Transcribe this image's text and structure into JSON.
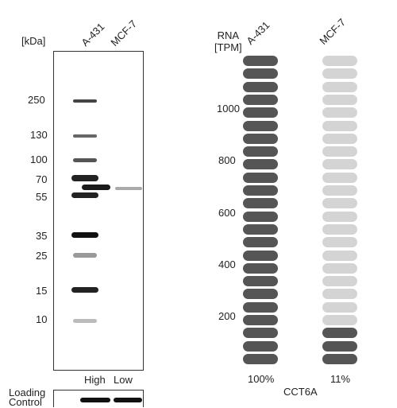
{
  "western_blot": {
    "unit_label": "[kDa]",
    "lanes": [
      {
        "name": "A-431",
        "level": "High",
        "band_intensity": 1.0
      },
      {
        "name": "MCF-7",
        "level": "Low",
        "band_intensity": 0.35
      }
    ],
    "markers": [
      "250",
      "130",
      "100",
      "70",
      "55",
      "35",
      "25",
      "15",
      "10"
    ],
    "loading_control_label_line1": "Loading",
    "loading_control_label_line2": "Control",
    "colors": {
      "band": "#1a1a1a",
      "marker": "#2a2a2a"
    }
  },
  "rna": {
    "header_line1": "RNA",
    "header_line2": "[TPM]",
    "cell_lines": [
      {
        "name": "A-431",
        "percent_label": "100%",
        "filled_fraction": 1.0
      },
      {
        "name": "MCF-7",
        "percent_label": "11%",
        "filled_fraction": 0.11
      }
    ],
    "axis_ticks": [
      "1000",
      "800",
      "600",
      "400",
      "200"
    ],
    "gene_label": "CCT6A",
    "colors": {
      "filled": "#555555",
      "empty": "#d4d4d4"
    }
  }
}
